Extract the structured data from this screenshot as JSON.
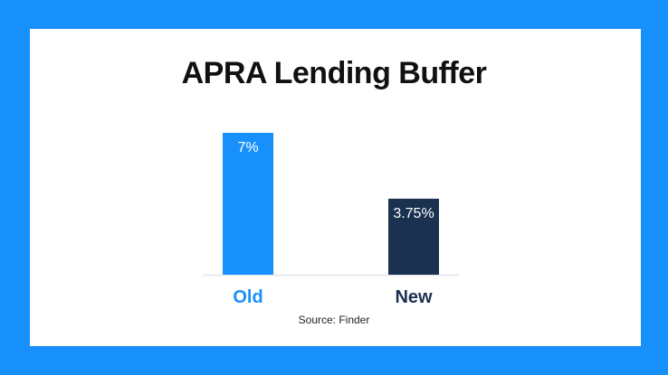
{
  "chart_data": {
    "type": "bar",
    "title": "APRA Lending Buffer",
    "categories": [
      "Old",
      "New"
    ],
    "values": [
      7,
      3.75
    ],
    "value_labels": [
      "7%",
      "3.75%"
    ],
    "colors": [
      "#1890fb",
      "#1b3150"
    ],
    "ylim": [
      0,
      7
    ],
    "grid": false,
    "source": "Source: Finder"
  },
  "colors": {
    "background": "#1890fb",
    "card": "#ffffff"
  }
}
